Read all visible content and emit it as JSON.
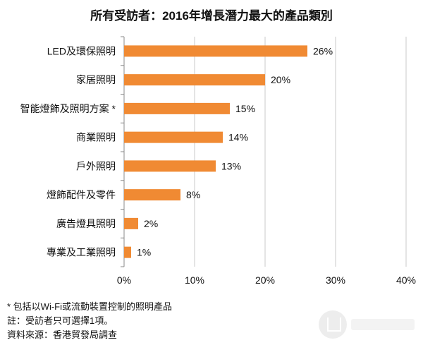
{
  "chart_data": {
    "type": "bar",
    "orientation": "horizontal",
    "title": "所有受訪者：2016年增長潛力最大的產品類別",
    "categories": [
      "LED及環保照明",
      "家居照明",
      "智能燈飾及照明方案 *",
      "商業照明",
      "戶外照明",
      "燈飾配件及零件",
      "廣告燈具照明",
      "專業及工業照明"
    ],
    "values": [
      26,
      20,
      15,
      14,
      13,
      8,
      2,
      1
    ],
    "value_labels": [
      "26%",
      "20%",
      "15%",
      "14%",
      "13%",
      "8%",
      "2%",
      "1%"
    ],
    "xlim": [
      0,
      40
    ],
    "xticks": [
      "0%",
      "10%",
      "20%",
      "30%",
      "40%"
    ],
    "bar_color": "#f08a33",
    "grid": "vertical"
  },
  "notes": {
    "footnote": "* 包括以Wi-Fi或流動裝置控制的照明產品",
    "note": "註：受訪者只可選擇1項。",
    "source": "資料來源：香港貿發局調查"
  }
}
